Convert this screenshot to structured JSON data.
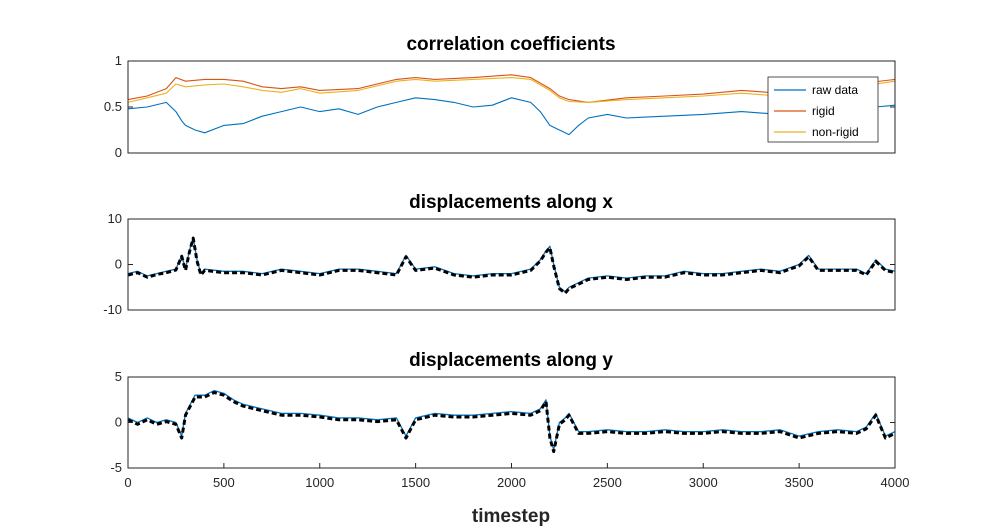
{
  "figure": {
    "xlabel": "timestep"
  },
  "colors": {
    "raw": "#0072BD",
    "rigid": "#D95319",
    "nonrigid": "#EDB120",
    "overlay": "#000000",
    "overlay_tint": "#7E2F8E",
    "axes": "#262626"
  },
  "chart_data": [
    {
      "type": "line",
      "title": "correlation coefficients",
      "xlim": [
        0,
        4000
      ],
      "ylim": [
        0,
        1
      ],
      "yticks": [
        0,
        0.5,
        1
      ],
      "ytick_labels": [
        "0",
        "0.5",
        "1"
      ],
      "legend": {
        "location": "top-right",
        "entries": [
          "raw data",
          "rigid",
          "non-rigid"
        ]
      },
      "series": [
        {
          "name": "raw data",
          "x": [
            0,
            100,
            200,
            250,
            280,
            300,
            350,
            400,
            500,
            600,
            700,
            800,
            900,
            1000,
            1100,
            1200,
            1300,
            1400,
            1500,
            1600,
            1700,
            1800,
            1900,
            2000,
            2100,
            2150,
            2200,
            2250,
            2300,
            2350,
            2400,
            2500,
            2600,
            2800,
            3000,
            3200,
            3400,
            3500,
            3700,
            3800,
            3900,
            4000
          ],
          "y": [
            0.48,
            0.5,
            0.55,
            0.45,
            0.35,
            0.3,
            0.25,
            0.22,
            0.3,
            0.32,
            0.4,
            0.45,
            0.5,
            0.45,
            0.48,
            0.42,
            0.5,
            0.55,
            0.6,
            0.58,
            0.55,
            0.5,
            0.52,
            0.6,
            0.55,
            0.45,
            0.3,
            0.25,
            0.2,
            0.3,
            0.38,
            0.42,
            0.38,
            0.4,
            0.42,
            0.45,
            0.42,
            0.45,
            0.42,
            0.48,
            0.5,
            0.52
          ]
        },
        {
          "name": "rigid",
          "x": [
            0,
            100,
            200,
            250,
            300,
            400,
            500,
            600,
            700,
            800,
            900,
            1000,
            1200,
            1400,
            1500,
            1600,
            1800,
            2000,
            2100,
            2200,
            2250,
            2300,
            2400,
            2600,
            2800,
            3000,
            3200,
            3400,
            3600,
            3800,
            4000
          ],
          "y": [
            0.58,
            0.62,
            0.7,
            0.82,
            0.78,
            0.8,
            0.8,
            0.78,
            0.72,
            0.7,
            0.72,
            0.68,
            0.7,
            0.8,
            0.82,
            0.8,
            0.82,
            0.85,
            0.82,
            0.7,
            0.62,
            0.58,
            0.55,
            0.6,
            0.62,
            0.64,
            0.68,
            0.65,
            0.7,
            0.75,
            0.8
          ]
        },
        {
          "name": "non-rigid",
          "x": [
            0,
            100,
            200,
            250,
            300,
            400,
            500,
            600,
            700,
            800,
            900,
            1000,
            1200,
            1400,
            1500,
            1600,
            1800,
            2000,
            2100,
            2200,
            2250,
            2300,
            2400,
            2600,
            2800,
            3000,
            3200,
            3400,
            3600,
            3800,
            4000
          ],
          "y": [
            0.55,
            0.6,
            0.65,
            0.75,
            0.72,
            0.74,
            0.75,
            0.72,
            0.68,
            0.66,
            0.7,
            0.65,
            0.68,
            0.78,
            0.8,
            0.78,
            0.8,
            0.82,
            0.8,
            0.68,
            0.6,
            0.56,
            0.55,
            0.58,
            0.6,
            0.62,
            0.65,
            0.62,
            0.68,
            0.72,
            0.78
          ]
        }
      ]
    },
    {
      "type": "line",
      "title": "displacements along x",
      "xlim": [
        0,
        4000
      ],
      "ylim": [
        -10,
        10
      ],
      "yticks": [
        -10,
        0,
        10
      ],
      "ytick_labels": [
        "-10",
        "0",
        "10"
      ],
      "series": [
        {
          "name": "rigid",
          "x": [
            0,
            50,
            100,
            150,
            200,
            250,
            280,
            300,
            320,
            340,
            360,
            380,
            400,
            500,
            600,
            700,
            800,
            900,
            1000,
            1100,
            1200,
            1300,
            1400,
            1450,
            1500,
            1600,
            1700,
            1800,
            1900,
            2000,
            2100,
            2150,
            2180,
            2200,
            2220,
            2250,
            2280,
            2300,
            2350,
            2400,
            2500,
            2600,
            2700,
            2800,
            2900,
            3000,
            3100,
            3200,
            3300,
            3400,
            3500,
            3550,
            3600,
            3700,
            3800,
            3850,
            3900,
            3950,
            4000
          ],
          "y": [
            -2,
            -1.5,
            -2.5,
            -2,
            -1.5,
            -1,
            2,
            -1,
            3,
            6,
            1,
            -2,
            -1,
            -1.5,
            -1.5,
            -2,
            -1,
            -1.5,
            -2,
            -1,
            -1,
            -1.5,
            -2,
            2,
            -1,
            -0.5,
            -2,
            -2.5,
            -2,
            -2,
            -1,
            1,
            3,
            4,
            0,
            -5,
            -6,
            -5,
            -4,
            -3,
            -2.5,
            -3,
            -2.5,
            -2.5,
            -1.5,
            -2,
            -2,
            -1.5,
            -1,
            -1.5,
            0,
            2,
            -1,
            -1,
            -1,
            -2,
            1,
            -1,
            -1.5
          ]
        },
        {
          "name": "non-rigid",
          "x": [
            0,
            50,
            100,
            150,
            200,
            250,
            280,
            300,
            320,
            340,
            360,
            380,
            400,
            500,
            600,
            700,
            800,
            900,
            1000,
            1100,
            1200,
            1300,
            1400,
            1450,
            1500,
            1600,
            1700,
            1800,
            1900,
            2000,
            2100,
            2150,
            2180,
            2200,
            2220,
            2250,
            2280,
            2300,
            2350,
            2400,
            2500,
            2600,
            2700,
            2800,
            2900,
            3000,
            3100,
            3200,
            3300,
            3400,
            3500,
            3550,
            3600,
            3700,
            3800,
            3850,
            3900,
            3950,
            4000
          ],
          "y": [
            -2.3,
            -1.8,
            -2.8,
            -2.2,
            -1.8,
            -1.2,
            1.8,
            -1.3,
            2.7,
            5.8,
            0.8,
            -2.3,
            -1.3,
            -1.8,
            -1.8,
            -2.3,
            -1.3,
            -1.8,
            -2.3,
            -1.3,
            -1.3,
            -1.8,
            -2.3,
            1.7,
            -1.3,
            -0.8,
            -2.3,
            -2.8,
            -2.3,
            -2.3,
            -1.3,
            0.8,
            2.7,
            3.7,
            -0.3,
            -5.3,
            -6.3,
            -5.3,
            -4.3,
            -3.3,
            -2.8,
            -3.3,
            -2.8,
            -2.8,
            -1.8,
            -2.3,
            -2.3,
            -1.8,
            -1.3,
            -1.8,
            -0.3,
            1.7,
            -1.3,
            -1.3,
            -1.3,
            -2.3,
            0.7,
            -1.3,
            -1.8
          ]
        }
      ]
    },
    {
      "type": "line",
      "title": "displacements along y",
      "xlabel": "timestep",
      "xlim": [
        0,
        4000
      ],
      "xticks": [
        0,
        500,
        1000,
        1500,
        2000,
        2500,
        3000,
        3500,
        4000
      ],
      "ylim": [
        -5,
        5
      ],
      "yticks": [
        -5,
        0,
        5
      ],
      "ytick_labels": [
        "-5",
        "0",
        "5"
      ],
      "series": [
        {
          "name": "rigid",
          "x": [
            0,
            50,
            100,
            150,
            200,
            250,
            280,
            300,
            350,
            400,
            450,
            500,
            550,
            600,
            700,
            800,
            900,
            1000,
            1100,
            1200,
            1300,
            1400,
            1450,
            1500,
            1600,
            1700,
            1800,
            1900,
            2000,
            2100,
            2150,
            2180,
            2200,
            2220,
            2250,
            2280,
            2300,
            2350,
            2400,
            2500,
            2600,
            2700,
            2800,
            2900,
            3000,
            3100,
            3200,
            3300,
            3400,
            3500,
            3600,
            3700,
            3800,
            3850,
            3900,
            3950,
            4000
          ],
          "y": [
            0.5,
            0,
            0.5,
            0,
            0.3,
            0,
            -1.5,
            1,
            3,
            3,
            3.5,
            3.2,
            2.5,
            2,
            1.5,
            1,
            1,
            0.8,
            0.5,
            0.5,
            0.3,
            0.5,
            -1.5,
            0.5,
            1,
            0.8,
            0.8,
            1,
            1.2,
            1,
            1.5,
            2.5,
            -1.5,
            -3,
            0,
            0.5,
            1,
            -1,
            -1,
            -0.8,
            -1,
            -1,
            -0.8,
            -1,
            -1,
            -0.8,
            -1,
            -1,
            -0.8,
            -1.5,
            -1,
            -0.8,
            -1,
            -0.5,
            1,
            -1.5,
            -1
          ]
        },
        {
          "name": "non-rigid",
          "x": [
            0,
            50,
            100,
            150,
            200,
            250,
            280,
            300,
            350,
            400,
            450,
            500,
            550,
            600,
            700,
            800,
            900,
            1000,
            1100,
            1200,
            1300,
            1400,
            1450,
            1500,
            1600,
            1700,
            1800,
            1900,
            2000,
            2100,
            2150,
            2180,
            2200,
            2220,
            2250,
            2280,
            2300,
            2350,
            2400,
            2500,
            2600,
            2700,
            2800,
            2900,
            3000,
            3100,
            3200,
            3300,
            3400,
            3500,
            3600,
            3700,
            3800,
            3850,
            3900,
            3950,
            4000
          ],
          "y": [
            0.3,
            -0.2,
            0.3,
            -0.2,
            0.1,
            -0.2,
            -1.7,
            0.8,
            2.8,
            2.8,
            3.3,
            3,
            2.3,
            1.8,
            1.3,
            0.8,
            0.8,
            0.6,
            0.3,
            0.3,
            0.1,
            0.3,
            -1.7,
            0.3,
            0.8,
            0.6,
            0.6,
            0.8,
            1,
            0.8,
            1.3,
            2.3,
            -1.7,
            -3.2,
            -0.2,
            0.3,
            0.8,
            -1.2,
            -1.2,
            -1,
            -1.2,
            -1.2,
            -1,
            -1.2,
            -1.2,
            -1,
            -1.2,
            -1.2,
            -1,
            -1.7,
            -1.2,
            -1,
            -1.2,
            -0.7,
            0.8,
            -1.7,
            -1.2
          ]
        }
      ]
    }
  ]
}
